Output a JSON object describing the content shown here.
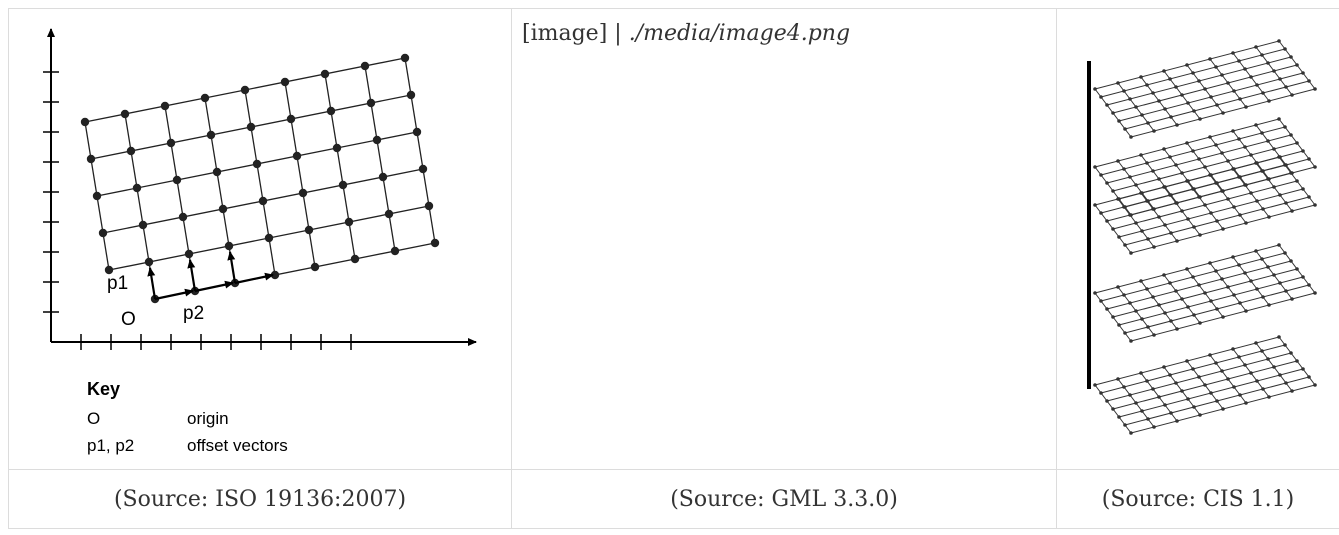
{
  "table": {
    "cells": [
      {
        "key": {
          "title": "Key",
          "rows": [
            {
              "symbol": "O",
              "description": "origin"
            },
            {
              "symbol": "p1, p2",
              "description": "offset vectors"
            }
          ]
        },
        "labels": {
          "origin": "O",
          "p1": "p1",
          "p2": "p2"
        },
        "caption": "(Source: ISO 19136:2007)"
      },
      {
        "placeholder_prefix": "[image] | ",
        "placeholder_path": "./media/image4.png",
        "caption": "(Source: GML 3.3.0)"
      },
      {
        "caption": "(Source: CIS 1.1)"
      }
    ]
  }
}
